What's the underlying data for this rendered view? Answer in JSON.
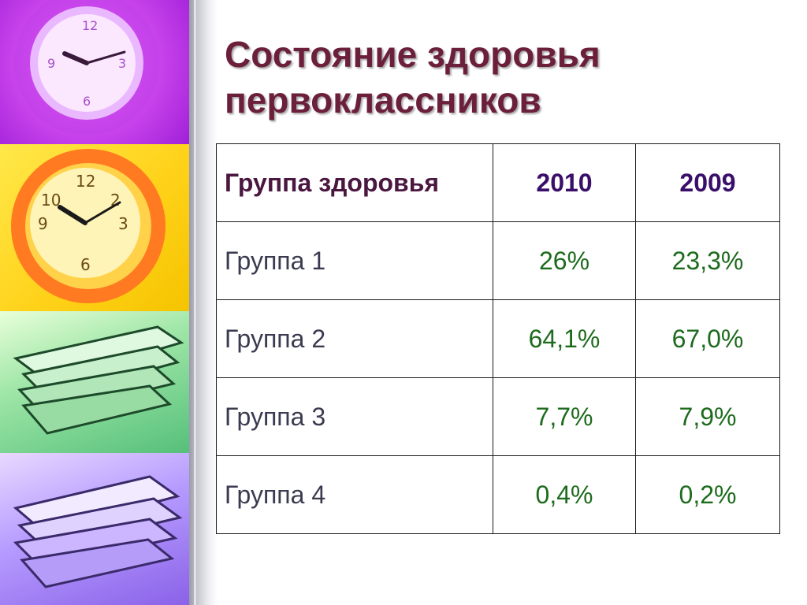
{
  "slide": {
    "title": "Состояние здоровья первоклассников"
  },
  "table": {
    "header": {
      "group": "Группа здоровья",
      "year1": "2010",
      "year2": "2009"
    },
    "rows": [
      {
        "group": "Группа 1",
        "y2010": "26%",
        "y2009": "23,3%"
      },
      {
        "group": "Группа 2",
        "y2010": "64,1%",
        "y2009": "67,0%"
      },
      {
        "group": "Группа 3",
        "y2010": "7,7%",
        "y2009": "7,9%"
      },
      {
        "group": "Группа 4",
        "y2010": "0,4%",
        "y2009": "0,2%"
      }
    ]
  },
  "decor": {
    "images": [
      "purple-clock",
      "yellow-clock",
      "green-books",
      "purple-books"
    ]
  },
  "colors": {
    "title": "#6b1f3a",
    "header_year": "#3a0f6a",
    "values": "#1d6b1d"
  }
}
